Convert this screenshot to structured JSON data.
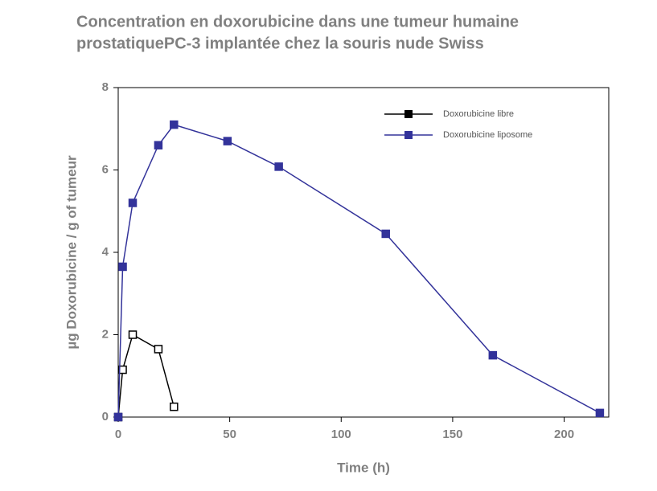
{
  "chart_data": {
    "type": "line",
    "title": [
      "Concentration en doxorubicine dans une tumeur humaine",
      "prostatiquePC-3  implantée chez la souris nude Swiss"
    ],
    "x_label": "Time (h)",
    "y_label": "µg Doxorubicine / g of tumeur",
    "xlim": [
      0,
      220
    ],
    "xticks": [
      0,
      50,
      100,
      150,
      200
    ],
    "ylim": [
      0,
      8
    ],
    "yticks": [
      0,
      2,
      4,
      6,
      8
    ],
    "legend": "top-right",
    "series": [
      {
        "name": "Doxorubicine libre",
        "color": "#000000",
        "marker_fill": "#ffffff",
        "x": [
          0,
          2,
          6.5,
          18,
          25
        ],
        "values": [
          0,
          1.15,
          2.0,
          1.65,
          0.25
        ]
      },
      {
        "name": "Doxorubicine liposome",
        "color": "#33339a",
        "marker_fill": "#33339a",
        "x": [
          0,
          2,
          6.5,
          18,
          25,
          49,
          72,
          120,
          168,
          216
        ],
        "values": [
          0,
          3.65,
          5.2,
          6.6,
          7.1,
          6.7,
          6.08,
          4.45,
          1.5,
          0.1
        ]
      }
    ]
  }
}
